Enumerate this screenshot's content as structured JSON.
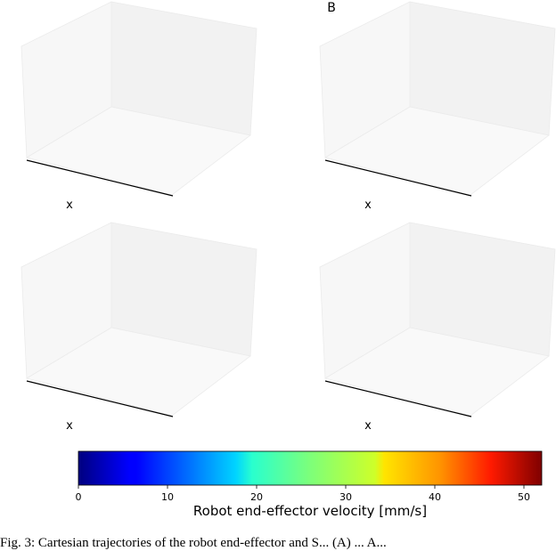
{
  "figure": {
    "panels": [
      {
        "xlabel": "x"
      },
      {
        "label": "B",
        "xlabel": "x"
      },
      {
        "xlabel": "x"
      },
      {
        "xlabel": "x"
      }
    ],
    "colorbar": {
      "label": "Robot end-effector velocity  [mm/s]",
      "lim": [
        0,
        52
      ],
      "ticks": [
        0,
        10,
        20,
        30,
        40,
        50
      ],
      "colormap": "jet"
    }
  },
  "caption": "Fig. 3:    Cartesian trajectories of the robot end-effector and S... (A) ... A..."
}
